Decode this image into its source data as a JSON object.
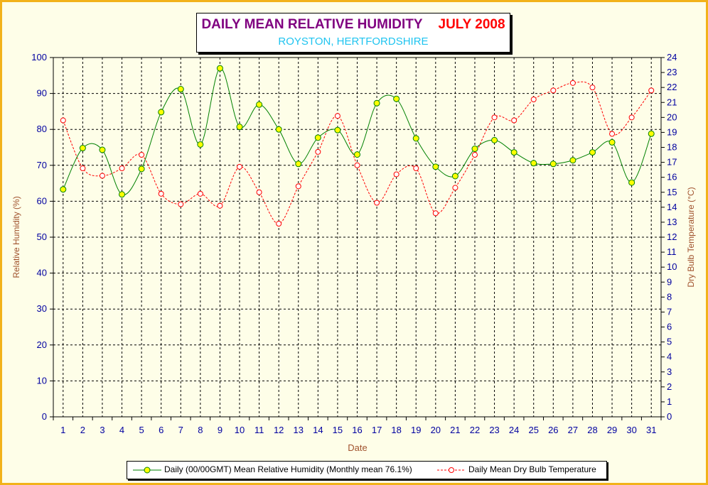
{
  "title": {
    "main": "DAILY MEAN RELATIVE HUMIDITY",
    "month": "JULY 2008",
    "subtitle": "ROYSTON, HERTFORDSHIRE"
  },
  "colors": {
    "frame_border": "#f2b21a",
    "background": "#fefee8",
    "humidity_line": "#008000",
    "humidity_marker": "#ffff00",
    "temperature_line": "#ff0000",
    "axis_label": "#a0522d",
    "tick_label": "#0000a0",
    "title_main": "#800080",
    "title_month": "#ff0000",
    "subtitle": "#1fc4f0"
  },
  "legend": {
    "humidity": "Daily (00/00GMT) Mean Relative Humidity (Monthly mean 76.1%)",
    "temperature": "Daily Mean Dry Bulb Temperature"
  },
  "chart_data": {
    "type": "line",
    "xlabel": "Date",
    "ylabel_left": "Relative Humidity (%)",
    "ylabel_right": "Dry Bulb Temperature (°C)",
    "x": [
      1,
      2,
      3,
      4,
      5,
      6,
      7,
      8,
      9,
      10,
      11,
      12,
      13,
      14,
      15,
      16,
      17,
      18,
      19,
      20,
      21,
      22,
      23,
      24,
      25,
      26,
      27,
      28,
      29,
      30,
      31
    ],
    "ylim_left": [
      0,
      100
    ],
    "yticks_left": [
      0,
      10,
      20,
      30,
      40,
      50,
      60,
      70,
      80,
      90,
      100
    ],
    "ylim_right": [
      0,
      24
    ],
    "yticks_right": [
      0,
      1,
      2,
      3,
      4,
      5,
      6,
      7,
      8,
      9,
      10,
      11,
      12,
      13,
      14,
      15,
      16,
      17,
      18,
      19,
      20,
      21,
      22,
      23,
      24
    ],
    "grid": true,
    "legend_position": "bottom",
    "series": [
      {
        "name": "Daily (00/00GMT) Mean Relative Humidity (Monthly mean 76.1%)",
        "axis": "left",
        "style": "solid",
        "values": [
          63.3,
          74.8,
          74.3,
          61.9,
          69.0,
          84.8,
          91.2,
          75.8,
          97.0,
          80.7,
          86.9,
          80.0,
          70.4,
          77.7,
          79.8,
          73.0,
          87.3,
          88.5,
          77.5,
          69.6,
          67.0,
          74.6,
          77.0,
          73.6,
          70.6,
          70.4,
          71.4,
          73.6,
          76.4,
          65.2,
          78.8
        ]
      },
      {
        "name": "Daily Mean Dry Bulb Temperature",
        "axis": "right",
        "style": "dashed",
        "values": [
          19.8,
          16.6,
          16.1,
          16.6,
          17.5,
          14.9,
          14.2,
          14.9,
          14.1,
          16.7,
          15.0,
          12.9,
          15.4,
          17.7,
          20.1,
          16.8,
          14.3,
          16.2,
          16.6,
          13.6,
          15.3,
          17.5,
          20.0,
          19.8,
          21.2,
          21.8,
          22.3,
          22.0,
          18.9,
          20.0,
          21.8
        ]
      }
    ]
  }
}
